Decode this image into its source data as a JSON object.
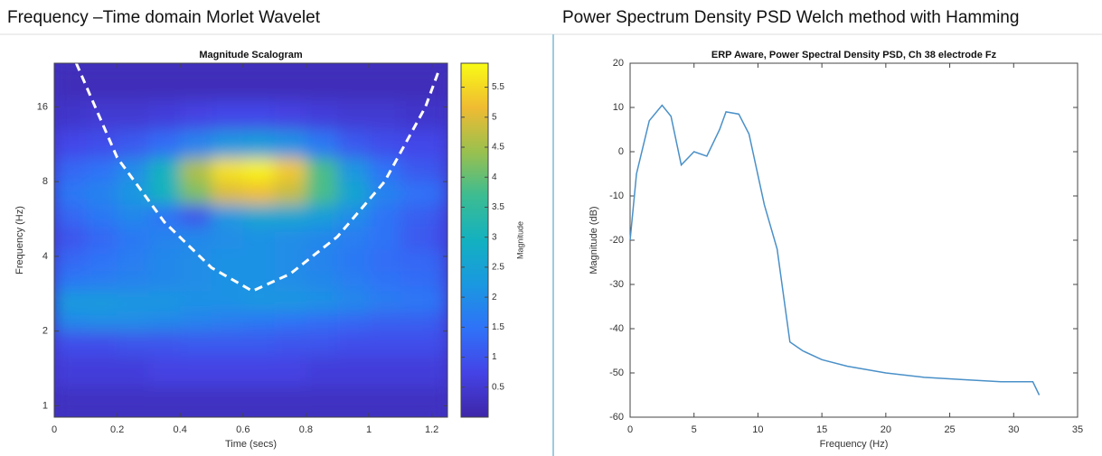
{
  "headings": [
    "Frequency –Time domain Morlet Wavelet",
    "Power Spectrum Density PSD Welch method with Hamming"
  ],
  "chart_data": [
    {
      "type": "heatmap",
      "title": "Magnitude Scalogram",
      "x_label": "Time (secs)",
      "y_label": "Frequency (Hz)",
      "colorbar_label": "Magnitude",
      "ylog": true,
      "xlim": [
        0,
        1.25
      ],
      "xticks": [
        0,
        0.2,
        0.4,
        0.6,
        0.8,
        1,
        1.2
      ],
      "ylim": [
        0.9,
        24
      ],
      "yticks": [
        1,
        2,
        4,
        8,
        16
      ],
      "clim": [
        0,
        5.9
      ],
      "cticks": [
        0.5,
        1,
        1.5,
        2,
        2.5,
        3,
        3.5,
        4,
        4.5,
        5,
        5.5
      ],
      "colormap": [
        "#3e26a8",
        "#4443e6",
        "#2f72f8",
        "#1a98e0",
        "#13b1c0",
        "#3cbc92",
        "#9ac04e",
        "#f0bb32",
        "#f9fb15"
      ],
      "x_edges": [
        0,
        0.1,
        0.2,
        0.3,
        0.4,
        0.5,
        0.6,
        0.7,
        0.8,
        0.9,
        1.0,
        1.1,
        1.2,
        1.25
      ],
      "y_edges": [
        0.9,
        1.2,
        1.6,
        2.0,
        2.4,
        2.9,
        3.5,
        4.3,
        5.3,
        6.5,
        8,
        10,
        13,
        17,
        24
      ],
      "z": [
        [
          0.3,
          0.3,
          0.3,
          0.3,
          0.3,
          0.3,
          0.3,
          0.3,
          0.3,
          0.3,
          0.3,
          0.3,
          0.3
        ],
        [
          0.6,
          0.6,
          0.6,
          0.7,
          0.7,
          0.7,
          0.7,
          0.7,
          0.6,
          0.6,
          0.6,
          0.6,
          0.6
        ],
        [
          0.9,
          0.9,
          1.0,
          1.0,
          1.1,
          1.1,
          1.1,
          1.0,
          1.0,
          0.9,
          0.9,
          0.9,
          0.9
        ],
        [
          1.9,
          2.0,
          2.0,
          1.9,
          1.8,
          1.7,
          1.6,
          1.5,
          1.4,
          1.3,
          1.2,
          1.2,
          1.1
        ],
        [
          2.3,
          2.3,
          2.2,
          2.2,
          2.1,
          2.1,
          2.2,
          2.2,
          2.1,
          1.9,
          1.7,
          1.6,
          1.5
        ],
        [
          1.6,
          1.7,
          1.8,
          1.9,
          2.0,
          2.1,
          2.1,
          2.0,
          1.9,
          1.7,
          1.5,
          1.4,
          1.3
        ],
        [
          1.3,
          1.5,
          1.7,
          1.9,
          2.0,
          2.1,
          2.1,
          2.0,
          1.8,
          1.6,
          1.4,
          1.3,
          1.2
        ],
        [
          1.0,
          1.3,
          1.6,
          1.8,
          1.9,
          2.0,
          2.1,
          2.0,
          1.9,
          1.7,
          1.5,
          1.1,
          0.9
        ],
        [
          1.3,
          1.6,
          1.9,
          1.5,
          1.0,
          2.2,
          2.6,
          2.6,
          2.4,
          2.0,
          1.5,
          1.2,
          1.0
        ],
        [
          1.6,
          1.8,
          2.2,
          3.0,
          4.2,
          5.0,
          5.2,
          4.8,
          3.8,
          2.6,
          1.8,
          1.5,
          1.4
        ],
        [
          1.3,
          1.5,
          2.0,
          3.0,
          4.6,
          5.6,
          5.8,
          5.3,
          3.8,
          2.2,
          1.5,
          1.1,
          1.0
        ],
        [
          0.8,
          0.9,
          1.1,
          1.4,
          1.8,
          2.2,
          2.3,
          2.1,
          1.6,
          1.1,
          0.9,
          0.8,
          0.8
        ],
        [
          0.4,
          0.5,
          0.5,
          0.6,
          0.7,
          0.8,
          0.8,
          0.7,
          0.6,
          0.5,
          0.5,
          0.4,
          0.4
        ],
        [
          0.2,
          0.2,
          0.2,
          0.2,
          0.2,
          0.2,
          0.2,
          0.2,
          0.2,
          0.2,
          0.2,
          0.2,
          0.2
        ]
      ],
      "cone": {
        "x": [
          0.07,
          0.2,
          0.35,
          0.5,
          0.63,
          0.75,
          0.9,
          1.05,
          1.18,
          1.22
        ],
        "y": [
          24,
          10,
          5.5,
          3.6,
          2.9,
          3.4,
          4.8,
          8,
          16,
          22
        ],
        "color": "#ffffff"
      }
    },
    {
      "type": "line",
      "title": "ERP Aware, Power Spectral Density PSD, Ch 38 electrode Fz",
      "x_label": "Frequency (Hz)",
      "y_label": "Magnitude (dB)",
      "color": "#4a90c8",
      "xlim": [
        0,
        35
      ],
      "xticks": [
        0,
        5,
        10,
        15,
        20,
        25,
        30,
        35
      ],
      "ylim": [
        -60,
        20
      ],
      "yticks": [
        -60,
        -50,
        -40,
        -30,
        -20,
        -10,
        0,
        10,
        20
      ],
      "x": [
        0,
        0.5,
        1,
        1.5,
        2.5,
        3.2,
        4,
        5,
        6,
        7,
        7.5,
        8.5,
        9.3,
        10.5,
        11.5,
        12.5,
        13.5,
        15,
        17,
        20,
        23,
        26,
        29,
        31.5,
        32
      ],
      "values": [
        -20,
        -5,
        1,
        7,
        10.5,
        8,
        -3,
        0,
        -1,
        5,
        9,
        8.5,
        4,
        -12,
        -22,
        -43,
        -45,
        -47,
        -48.5,
        -50,
        -51,
        -51.5,
        -52,
        -52,
        -55
      ]
    }
  ]
}
